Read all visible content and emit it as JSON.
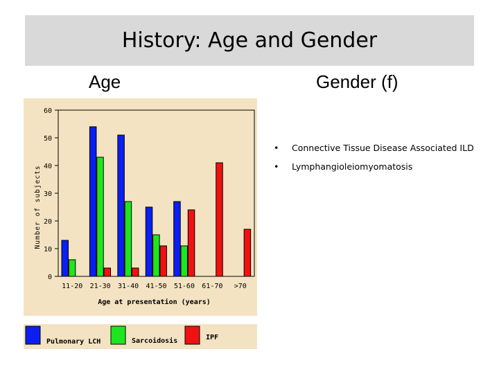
{
  "slide": {
    "title": "History: Age and Gender",
    "age_heading": "Age",
    "gender_heading": "Gender (f)"
  },
  "bullets": [
    "Connective Tissue Disease Associated ILD",
    "Lymphangioleiomyomatosis"
  ],
  "bullet_glyph": "•",
  "chart_data": {
    "type": "bar",
    "title": "",
    "xlabel": "Age at presentation (years)",
    "ylabel": "Number of subjects",
    "categories": [
      "11-20",
      "21-30",
      "31-40",
      "41-50",
      "51-60",
      "61-70",
      ">70"
    ],
    "ylim": [
      0,
      60
    ],
    "yticks": [
      0,
      10,
      20,
      30,
      40,
      50,
      60
    ],
    "series": [
      {
        "name": "Pulmonary LCH",
        "color": "#0a1ff0",
        "values": [
          13,
          54,
          51,
          25,
          27,
          0,
          0
        ]
      },
      {
        "name": "Sarcoidosis",
        "color": "#1ee61e",
        "values": [
          6,
          43,
          27,
          15,
          11,
          0,
          0
        ]
      },
      {
        "name": "IPF",
        "color": "#f01212",
        "values": [
          0,
          3,
          3,
          11,
          24,
          41,
          17
        ]
      }
    ],
    "colors": {
      "panel_bg": "#f3e3c2",
      "outline": "#000000"
    }
  }
}
